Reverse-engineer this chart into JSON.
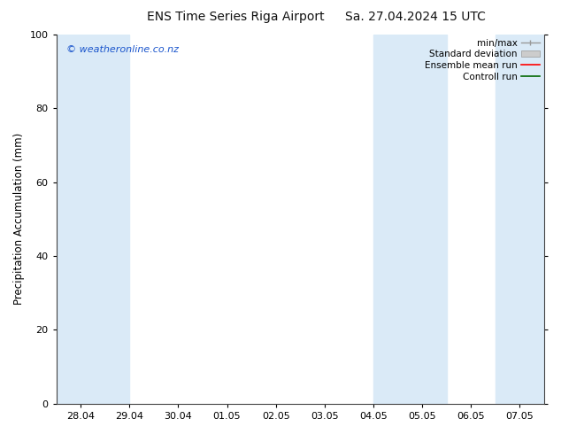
{
  "title_left": "ENS Time Series Riga Airport",
  "title_right": "Sa. 27.04.2024 15 UTC",
  "ylabel": "Precipitation Accumulation (mm)",
  "watermark": "© weatheronline.co.nz",
  "ylim": [
    0,
    100
  ],
  "yticks": [
    0,
    20,
    40,
    60,
    80,
    100
  ],
  "xtick_labels": [
    "28.04",
    "29.04",
    "30.04",
    "01.05",
    "02.05",
    "03.05",
    "04.05",
    "05.05",
    "06.05",
    "07.05"
  ],
  "shade_bands": [
    {
      "xstart": -0.5,
      "xend": 1.0,
      "color": "#daeaf7"
    },
    {
      "xstart": 6.0,
      "xend": 7.5,
      "color": "#daeaf7"
    },
    {
      "xstart": 8.5,
      "xend": 9.5,
      "color": "#daeaf7"
    }
  ],
  "legend_entries": [
    {
      "label": "min/max",
      "color": "#aaaaaa",
      "style": "minmax"
    },
    {
      "label": "Standard deviation",
      "color": "#cccccc",
      "style": "stddev"
    },
    {
      "label": "Ensemble mean run",
      "color": "red",
      "style": "line"
    },
    {
      "label": "Controll run",
      "color": "green",
      "style": "line"
    }
  ],
  "background_color": "#ffffff",
  "plot_bg_color": "#ffffff",
  "font_color": "#333333",
  "watermark_color": "#1a55cc",
  "title_fontsize": 10,
  "label_fontsize": 8.5,
  "tick_fontsize": 8,
  "legend_fontsize": 7.5,
  "watermark_fontsize": 8
}
